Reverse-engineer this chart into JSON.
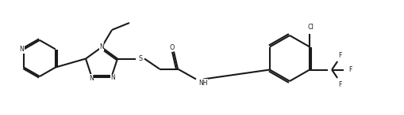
{
  "bg_color": "#ffffff",
  "line_color": "#1a1a1a",
  "line_width": 1.5,
  "figsize": [
    5.1,
    1.46
  ],
  "dpi": 100,
  "xlim": [
    0,
    51
  ],
  "ylim": [
    0,
    14.6
  ]
}
